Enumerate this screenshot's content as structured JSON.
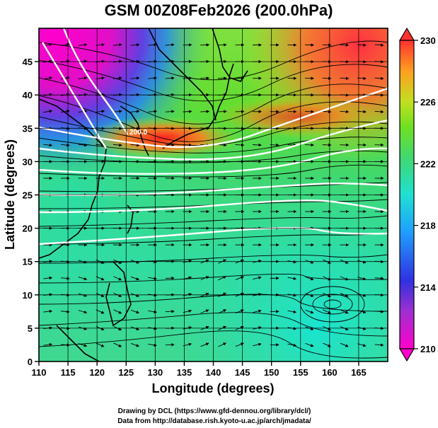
{
  "title": "GSM 00Z08Feb2026 (200.0hPa)",
  "xlabel": "Longitude (degrees)",
  "ylabel": "Latitude (degrees)",
  "x_ticks": [
    "110",
    "115",
    "120",
    "125",
    "130",
    "135",
    "140",
    "145",
    "150",
    "155",
    "160",
    "165"
  ],
  "y_ticks": [
    "0",
    "5",
    "10",
    "15",
    "20",
    "25",
    "30",
    "35",
    "40",
    "45"
  ],
  "colorbar": {
    "ticks": [
      "210",
      "214",
      "218",
      "222",
      "226",
      "230"
    ],
    "colors": [
      "#ff00cc",
      "#a02fd0",
      "#3030e0",
      "#1fa0ff",
      "#20e0d0",
      "#40d870",
      "#70e020",
      "#c0e020",
      "#ffa020",
      "#ff3030"
    ]
  },
  "credits": {
    "line1": "Drawing by DCL (https://www.gfd-dennou.org/library/dcl/)",
    "line2": "Data from http://database.rish.kyoto-u.ac.jp/arch/jmadata/"
  },
  "chart_data": {
    "type": "heatmap",
    "title": "GSM 00Z08Feb2026 (200.0hPa)",
    "xlabel": "Longitude (degrees)",
    "ylabel": "Latitude (degrees)",
    "xlim": [
      110,
      170
    ],
    "ylim": [
      0,
      50
    ],
    "colorbar_range": [
      210,
      230
    ],
    "grid": true,
    "contour_labels": [
      "200.0"
    ],
    "samples": [
      {
        "lon": 112,
        "lat": 47,
        "value": 211
      },
      {
        "lon": 120,
        "lat": 46,
        "value": 212
      },
      {
        "lon": 125,
        "lat": 47,
        "value": 214
      },
      {
        "lon": 135,
        "lat": 46,
        "value": 222
      },
      {
        "lon": 150,
        "lat": 47,
        "value": 226
      },
      {
        "lon": 165,
        "lat": 46,
        "value": 229
      },
      {
        "lon": 125,
        "lat": 35,
        "value": 228
      },
      {
        "lon": 135,
        "lat": 36,
        "value": 227
      },
      {
        "lon": 150,
        "lat": 37,
        "value": 226
      },
      {
        "lon": 165,
        "lat": 37,
        "value": 224
      },
      {
        "lon": 115,
        "lat": 28,
        "value": 222
      },
      {
        "lon": 140,
        "lat": 28,
        "value": 222
      },
      {
        "lon": 165,
        "lat": 26,
        "value": 220
      },
      {
        "lon": 120,
        "lat": 15,
        "value": 220
      },
      {
        "lon": 145,
        "lat": 15,
        "value": 221
      },
      {
        "lon": 115,
        "lat": 5,
        "value": 219
      },
      {
        "lon": 140,
        "lat": 5,
        "value": 220
      },
      {
        "lon": 165,
        "lat": 3,
        "value": 219
      }
    ]
  }
}
